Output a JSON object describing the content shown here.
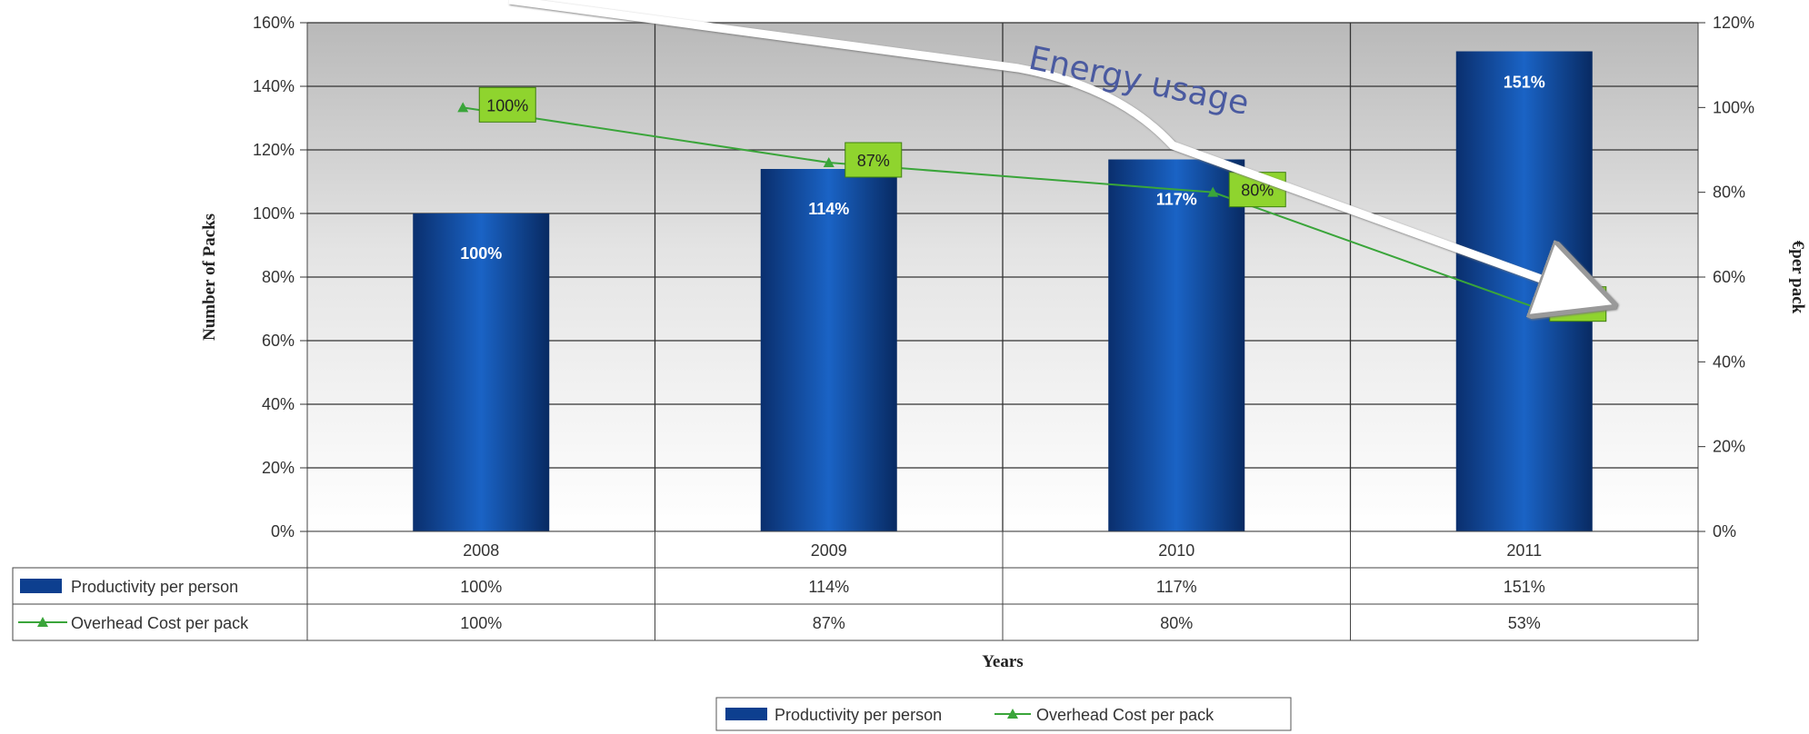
{
  "chart_data": {
    "type": "bar",
    "categories": [
      "2008",
      "2009",
      "2010",
      "2011"
    ],
    "series": [
      {
        "name": "Productivity per person",
        "type": "bar",
        "axis": "left",
        "values": [
          100,
          114,
          117,
          151
        ],
        "labels": [
          "100%",
          "114%",
          "117%",
          "151%"
        ]
      },
      {
        "name": "Overhead Cost per pack",
        "type": "line",
        "axis": "right",
        "values": [
          100,
          87,
          80,
          53
        ],
        "labels": [
          "100%",
          "87%",
          "80%",
          "53%"
        ]
      }
    ],
    "xlabel": "Years",
    "ylabel": "Number of Packs",
    "y2label": "€per pack",
    "ylim": [
      0,
      160
    ],
    "y2lim": [
      0,
      120
    ],
    "yticks": [
      "0%",
      "20%",
      "40%",
      "60%",
      "80%",
      "100%",
      "120%",
      "140%",
      "160%"
    ],
    "y2ticks": [
      "0%",
      "20%",
      "40%",
      "60%",
      "80%",
      "100%",
      "120%"
    ],
    "table": {
      "rows": [
        {
          "name": "Productivity per person",
          "values": [
            "100%",
            "114%",
            "117%",
            "151%"
          ]
        },
        {
          "name": "Overhead Cost per pack",
          "values": [
            "100%",
            "87%",
            "80%",
            "53%"
          ]
        }
      ]
    },
    "legend": {
      "position": "bottom",
      "items": [
        "Productivity per person",
        "Overhead Cost per pack"
      ]
    },
    "annotation": "Energy usage",
    "grid": true,
    "colors": {
      "bar": "#0d3f8f",
      "line": "#3aa53a",
      "label_bg": "#8fd42e"
    }
  }
}
